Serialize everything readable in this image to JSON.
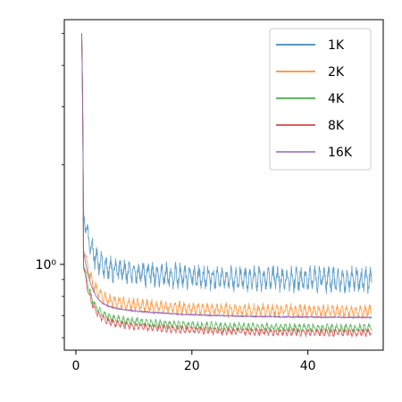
{
  "chart_data": {
    "type": "line",
    "title": "",
    "xlabel": "",
    "ylabel": "",
    "xlim": [
      -2,
      53
    ],
    "ylim": [
      0.55,
      5.5
    ],
    "yscale": "log",
    "grid": false,
    "legend_position": "top-right",
    "x_ticks": [
      {
        "value": 0,
        "label": "0"
      },
      {
        "value": 20,
        "label": "20"
      },
      {
        "value": 40,
        "label": "40"
      }
    ],
    "y_ticks": [
      {
        "value": 1.0,
        "label": "10⁰"
      }
    ],
    "x_start": 1,
    "x_end": 51,
    "series": [
      {
        "name": "1K",
        "color": "#1f77b4",
        "peak": 5.0,
        "level": 0.9,
        "noise": 0.1,
        "fluctuation": "periodic"
      },
      {
        "name": "2K",
        "color": "#ff7f0e",
        "peak": 5.0,
        "level": 0.72,
        "noise": 0.055,
        "fluctuation": "periodic"
      },
      {
        "name": "4K",
        "color": "#2ca02c",
        "peak": 5.0,
        "level": 0.64,
        "noise": 0.035,
        "fluctuation": "periodic"
      },
      {
        "name": "8K",
        "color": "#d62728",
        "peak": 5.0,
        "level": 0.62,
        "noise": 0.03,
        "fluctuation": "periodic"
      },
      {
        "name": "16K",
        "color": "#9467bd",
        "peak": 5.0,
        "level": 0.69,
        "noise": 0.01,
        "fluctuation": "smooth"
      }
    ]
  }
}
